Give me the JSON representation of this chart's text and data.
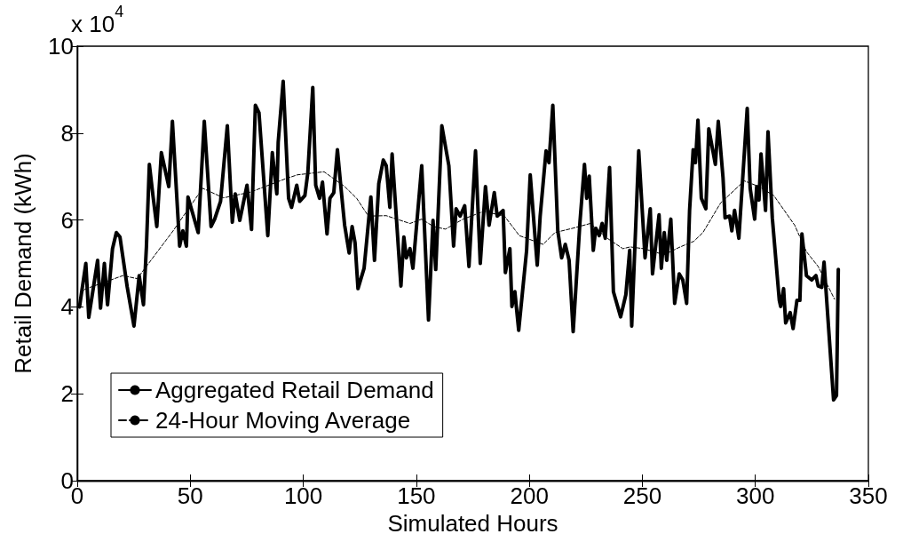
{
  "chart_data": {
    "type": "line",
    "xlabel": "Simulated Hours",
    "ylabel": "Retail Demand (kWh)",
    "annotations": [
      "x 10$^{4}$"
    ],
    "xlim": [
      0,
      350
    ],
    "xticks": [
      0,
      50,
      100,
      150,
      200,
      250,
      300,
      350
    ],
    "ylim": [
      0,
      10
    ],
    "yticks": [
      0,
      2,
      4,
      6,
      8,
      10
    ],
    "grid": false,
    "legend": "bottom left",
    "marker": "none",
    "series": [
      {
        "name": "Aggregated Retail Demand",
        "color": "#000000",
        "line_style": "solid",
        "x": [
          1,
          3.8,
          5.1,
          9,
          10.3,
          12,
          13.4,
          15.6,
          17.3,
          18.9,
          22.1,
          25.1,
          27.4,
          29.3,
          30.6,
          31.9,
          33.5,
          35.2,
          37.2,
          40.5,
          42.1,
          45.3,
          46.7,
          48.3,
          49,
          53.5,
          56.2,
          59.2,
          60.8,
          63.4,
          66.4,
          68.6,
          69.9,
          71.9,
          75.1,
          77.1,
          78.8,
          80.4,
          84.3,
          86.3,
          88.3,
          88.9,
          91.1,
          93.5,
          94.8,
          97.1,
          98.4,
          100.7,
          102,
          104.2,
          105.5,
          107.2,
          108.5,
          110.5,
          111.8,
          113.5,
          115.1,
          116.8,
          118.3,
          120.3,
          121.6,
          122.9,
          124.2,
          126.9,
          129.9,
          131.5,
          133.4,
          135.4,
          136.7,
          138.3,
          139.3,
          143.2,
          144.5,
          145.6,
          147.2,
          148.5,
          152.4,
          155.4,
          157.4,
          158.6,
          161.3,
          164.4,
          166.5,
          167.6,
          169.4,
          171.4,
          173.3,
          176.2,
          178.3,
          180.6,
          182.2,
          184.5,
          185.8,
          188.4,
          189.4,
          191.4,
          192.3,
          193.6,
          195.3,
          198.8,
          200.4,
          203.5,
          204.8,
          207.4,
          208.7,
          210.4,
          212.6,
          214.3,
          215.9,
          217.6,
          219.4,
          222.4,
          224.4,
          225.4,
          226.5,
          228.3,
          229.4,
          230.9,
          232.2,
          233.6,
          235.5,
          237.2,
          240.4,
          242.7,
          244.4,
          245.3,
          248.4,
          251.2,
          253.5,
          254.5,
          257.4,
          258.4,
          259.7,
          260.8,
          262.6,
          264.3,
          266.3,
          267.9,
          269.6,
          270.9,
          272.5,
          273.5,
          274.6,
          276.1,
          278.1,
          279.4,
          282.3,
          283.6,
          285.7,
          286.6,
          288.6,
          289.6,
          290.8,
          292.7,
          296.4,
          297.7,
          299.7,
          300.6,
          301.6,
          302.5,
          304.5,
          305.6,
          307.5,
          310.6,
          311.2,
          312.5,
          313.4,
          315.4,
          316.7,
          318.4,
          319.7,
          320.6,
          322.6,
          324.9,
          326.8,
          327.8,
          329.4,
          330.4,
          334.6,
          335.9,
          336.7
        ],
        "values": [
          4.0,
          5.0,
          3.76,
          5.07,
          3.97,
          5.0,
          4.05,
          5.34,
          5.71,
          5.61,
          4.46,
          3.56,
          4.72,
          4.05,
          5.38,
          7.28,
          6.56,
          5.85,
          7.55,
          6.77,
          8.27,
          5.4,
          5.75,
          5.4,
          6.53,
          5.71,
          8.27,
          5.85,
          6.02,
          6.43,
          8.17,
          5.95,
          6.6,
          5.99,
          6.8,
          5.78,
          8.64,
          8.47,
          5.64,
          7.55,
          6.6,
          7.79,
          9.19,
          6.5,
          6.29,
          6.8,
          6.43,
          6.56,
          7.08,
          9.05,
          6.8,
          6.5,
          6.87,
          5.68,
          6.5,
          6.63,
          7.62,
          6.67,
          5.88,
          5.24,
          5.85,
          5.48,
          4.42,
          4.89,
          6.53,
          5.07,
          6.84,
          7.38,
          7.25,
          6.29,
          7.52,
          4.48,
          5.61,
          5.13,
          5.34,
          4.89,
          7.25,
          3.7,
          5.99,
          4.86,
          8.17,
          7.25,
          5.4,
          6.26,
          6.09,
          6.33,
          4.93,
          7.59,
          5.0,
          6.77,
          5.88,
          6.63,
          6.09,
          6.22,
          4.79,
          5.34,
          4.01,
          4.35,
          3.46,
          5.3,
          7.04,
          4.96,
          6.09,
          7.59,
          7.32,
          8.64,
          5.75,
          5.13,
          5.44,
          5.07,
          3.43,
          5.95,
          7.28,
          6.5,
          7.01,
          5.3,
          5.81,
          5.64,
          5.92,
          5.58,
          7.21,
          4.35,
          3.77,
          4.28,
          5.3,
          3.56,
          7.59,
          5.13,
          6.26,
          4.76,
          6.12,
          4.89,
          5.71,
          5.07,
          6.02,
          4.08,
          4.76,
          4.62,
          4.08,
          6.22,
          7.62,
          7.32,
          8.3,
          6.5,
          6.26,
          8.1,
          7.28,
          8.27,
          6.97,
          6.05,
          6.09,
          5.75,
          6.22,
          5.58,
          8.57,
          6.73,
          6.02,
          6.77,
          6.46,
          7.52,
          6.22,
          8.03,
          6.05,
          4.15,
          4.01,
          4.42,
          3.63,
          3.87,
          3.5,
          4.15,
          4.15,
          5.68,
          4.72,
          4.62,
          4.72,
          4.48,
          4.45,
          5.03,
          1.86,
          1.96,
          4.86
        ]
      },
      {
        "name": "24-Hour Moving Average",
        "color": "#000000",
        "line_style": "dashed",
        "x": [
          1,
          3,
          20.2,
          26.5,
          42.4,
          55.5,
          64.7,
          76.5,
          92.2,
          97.4,
          109.2,
          118.3,
          123.6,
          128.8,
          136.7,
          147.2,
          152.4,
          157.6,
          162.9,
          170.7,
          179.9,
          189,
          195.6,
          206.1,
          211.3,
          219.2,
          227,
          233.6,
          241.4,
          244.6,
          250.6,
          259.7,
          266.3,
          272.8,
          276.8,
          284.6,
          295.1,
          301.6,
          308.2,
          317.4,
          322.6,
          327.8,
          335
        ],
        "values": [
          4.2,
          4.4,
          4.72,
          4.65,
          5.75,
          6.73,
          6.51,
          6.64,
          6.95,
          7.04,
          7.11,
          6.77,
          6.5,
          6.09,
          6.1,
          5.92,
          6.02,
          5.85,
          5.79,
          6.02,
          6.2,
          6.09,
          5.64,
          5.44,
          5.71,
          5.81,
          5.92,
          5.61,
          5.34,
          5.38,
          5.34,
          5.2,
          5.37,
          5.51,
          5.71,
          6.39,
          6.9,
          6.77,
          6.56,
          5.88,
          5.27,
          4.93,
          4.18
        ]
      }
    ]
  }
}
